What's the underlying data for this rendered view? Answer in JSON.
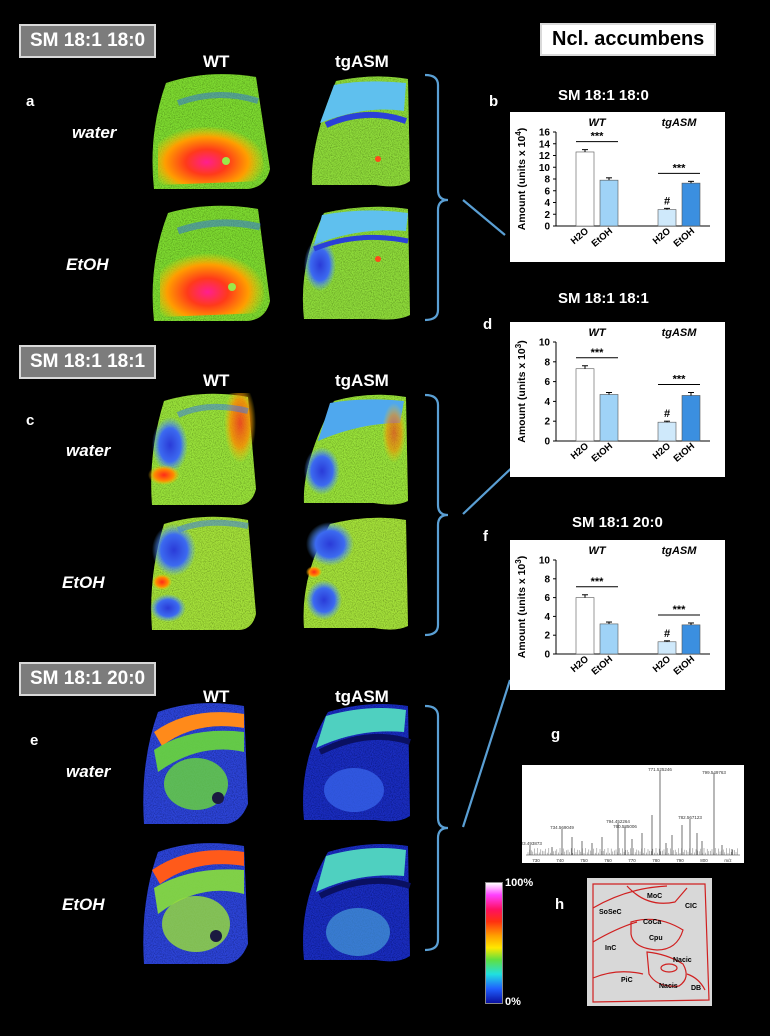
{
  "region_title": "Ncl. accumbens",
  "blocks": [
    {
      "title": "SM 18:1 18:0",
      "col_wt": "WT",
      "col_tg": "tgASM",
      "panel": "a",
      "row1": "water",
      "row2": "EtOH"
    },
    {
      "title": "SM 18:1 18:1",
      "col_wt": "WT",
      "col_tg": "tgASM",
      "panel": "c",
      "row1": "water",
      "row2": "EtOH"
    },
    {
      "title": "SM 18:1 20:0",
      "col_wt": "WT",
      "col_tg": "tgASM",
      "panel": "e",
      "row1": "water",
      "row2": "EtOH"
    }
  ],
  "chart_data": [
    {
      "type": "bar",
      "panel": "b",
      "title": "SM 18:1 18:0",
      "ylabel": "Amount (units x 10",
      "ylabel_exp": "4",
      "ylabel_close": ")",
      "ylim": [
        0,
        16
      ],
      "yticks": [
        "0",
        "2",
        "4",
        "6",
        "8",
        "10",
        "12",
        "14",
        "16"
      ],
      "groups": [
        "WT",
        "tgASM"
      ],
      "categories": [
        "H2O",
        "EtOH",
        "H2O",
        "EtOH"
      ],
      "values": [
        12.6,
        7.8,
        2.8,
        7.3
      ],
      "errors": [
        0.4,
        0.4,
        0.2,
        0.3
      ],
      "colors": [
        "#ffffff",
        "#9fd3f7",
        "#cfe9fb",
        "#3b8fe0"
      ],
      "sig": [
        "***",
        "***"
      ],
      "hash": "#"
    },
    {
      "type": "bar",
      "panel": "d",
      "title": "SM 18:1 18:1",
      "ylabel": "Amount (units x 10",
      "ylabel_exp": "3",
      "ylabel_close": ")",
      "ylim": [
        0,
        10
      ],
      "yticks": [
        "0",
        "2",
        "4",
        "6",
        "8",
        "10"
      ],
      "groups": [
        "WT",
        "tgASM"
      ],
      "categories": [
        "H2O",
        "EtOH",
        "H2O",
        "EtOH"
      ],
      "values": [
        7.3,
        4.7,
        1.9,
        4.6
      ],
      "errors": [
        0.3,
        0.2,
        0.1,
        0.3
      ],
      "colors": [
        "#ffffff",
        "#9fd3f7",
        "#cfe9fb",
        "#3b8fe0"
      ],
      "sig": [
        "***",
        "***"
      ],
      "hash": "#"
    },
    {
      "type": "bar",
      "panel": "f",
      "title": "SM 18:1 20:0",
      "ylabel": "Amount (units x 10",
      "ylabel_exp": "3",
      "ylabel_close": ")",
      "ylim": [
        0,
        10
      ],
      "yticks": [
        "0",
        "2",
        "4",
        "6",
        "8",
        "10"
      ],
      "groups": [
        "WT",
        "tgASM"
      ],
      "categories": [
        "H2O",
        "EtOH",
        "H2O",
        "EtOH"
      ],
      "values": [
        6.0,
        3.2,
        1.3,
        3.1
      ],
      "errors": [
        0.3,
        0.2,
        0.1,
        0.2
      ],
      "colors": [
        "#ffffff",
        "#9fd3f7",
        "#cfe9fb",
        "#3b8fe0"
      ],
      "sig": [
        "***",
        "***"
      ],
      "hash": "#"
    },
    {
      "type": "line",
      "panel": "g",
      "title": "",
      "x_ticks": [
        "730",
        "740",
        "750",
        "760",
        "770",
        "780",
        "790",
        "800",
        "m/z"
      ],
      "peak_labels": [
        "771.525246",
        "799.549763",
        "794.452264",
        "760.585006",
        "782.567123",
        "734.569049",
        "723.493873"
      ]
    }
  ],
  "colorbar": {
    "max_label": "100%",
    "min_label": "0%"
  },
  "atlas": {
    "panel": "h",
    "regions": [
      "MoC",
      "CIC",
      "SoSeC",
      "CoCa",
      "Cpu",
      "InC",
      "Nacic",
      "PiC",
      "Nacis",
      "DB"
    ]
  }
}
